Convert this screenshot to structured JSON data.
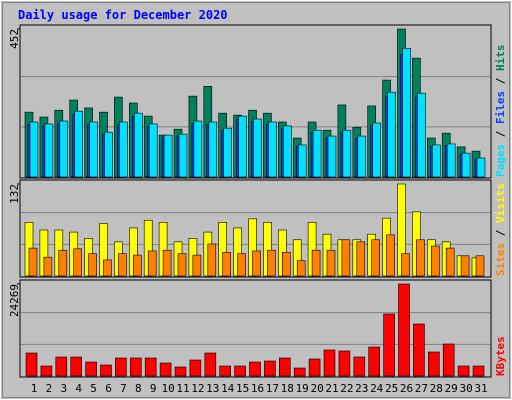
{
  "chart_data": [
    {
      "type": "bar",
      "title": "Daily usage for December 2020",
      "ylim": [
        0,
        452
      ],
      "yticks": [
        452
      ],
      "series": [
        {
          "name": "Hits",
          "color": "#00805c",
          "values": [
            198,
            183,
            204,
            235,
            211,
            198,
            244,
            226,
            186,
            128,
            146,
            247,
            277,
            195,
            189,
            204,
            195,
            168,
            119,
            168,
            143,
            220,
            152,
            217,
            296,
            452,
            363,
            119,
            134,
            92,
            79
          ]
        },
        {
          "name": "Files",
          "color": "#0040ff",
          "values": [
            160,
            155,
            163,
            192,
            160,
            130,
            160,
            186,
            155,
            122,
            125,
            163,
            160,
            142,
            177,
            169,
            160,
            149,
            93,
            136,
            119,
            136,
            119,
            157,
            246,
            374,
            244,
            93,
            96,
            69,
            55
          ]
        },
        {
          "name": "Pages",
          "color": "#00e0ff",
          "values": [
            168,
            162,
            171,
            201,
            168,
            137,
            168,
            195,
            162,
            128,
            131,
            171,
            168,
            149,
            186,
            177,
            168,
            156,
            98,
            143,
            125,
            143,
            125,
            165,
            259,
            393,
            256,
            98,
            101,
            73,
            58
          ]
        }
      ]
    },
    {
      "type": "bar",
      "ylim": [
        0,
        132
      ],
      "yticks": [
        132
      ],
      "series": [
        {
          "name": "Visits",
          "color": "#ffff00",
          "values": [
            77,
            66,
            66,
            63,
            54,
            75,
            49,
            69,
            80,
            77,
            49,
            54,
            63,
            77,
            69,
            82,
            77,
            66,
            52,
            77,
            60,
            52,
            52,
            60,
            83,
            132,
            92,
            52,
            49,
            29,
            26
          ]
        },
        {
          "name": "Sites",
          "color": "#ff8000",
          "values": [
            40,
            27,
            37,
            39,
            32,
            23,
            32,
            30,
            36,
            37,
            32,
            30,
            46,
            34,
            32,
            36,
            37,
            34,
            22,
            37,
            37,
            52,
            49,
            52,
            59,
            32,
            52,
            43,
            40,
            29,
            29
          ]
        }
      ]
    },
    {
      "type": "bar",
      "ylim": [
        0,
        24269
      ],
      "yticks": [
        24269
      ],
      "categories": [
        "1",
        "2",
        "3",
        "4",
        "5",
        "6",
        "7",
        "8",
        "9",
        "10",
        "11",
        "12",
        "13",
        "14",
        "15",
        "16",
        "17",
        "18",
        "19",
        "20",
        "21",
        "22",
        "23",
        "24",
        "25",
        "26",
        "27",
        "28",
        "29",
        "30",
        "31"
      ],
      "category_colors": [
        "#000000",
        "#000000",
        "#000000",
        "#000000",
        "#00805c",
        "#00805c",
        "#000000",
        "#000000",
        "#000000",
        "#000000",
        "#000000",
        "#00805c",
        "#00805c",
        "#000000",
        "#000000",
        "#000000",
        "#000000",
        "#000000",
        "#00805c",
        "#00805c",
        "#000000",
        "#000000",
        "#000000",
        "#000000",
        "#000000",
        "#00805c",
        "#00805c",
        "#000000",
        "#000000",
        "#000000",
        "#000000"
      ],
      "series": [
        {
          "name": "KBytes",
          "color": "#ff0000",
          "values": [
            6067,
            2638,
            5012,
            5012,
            3693,
            2902,
            4748,
            4748,
            4748,
            3429,
            2374,
            4221,
            6067,
            2638,
            2638,
            3693,
            3957,
            4748,
            2110,
            4485,
            6859,
            6595,
            5012,
            7650,
            16355,
            24269,
            13717,
            6331,
            8441,
            2638,
            2638
          ]
        }
      ]
    }
  ]
}
